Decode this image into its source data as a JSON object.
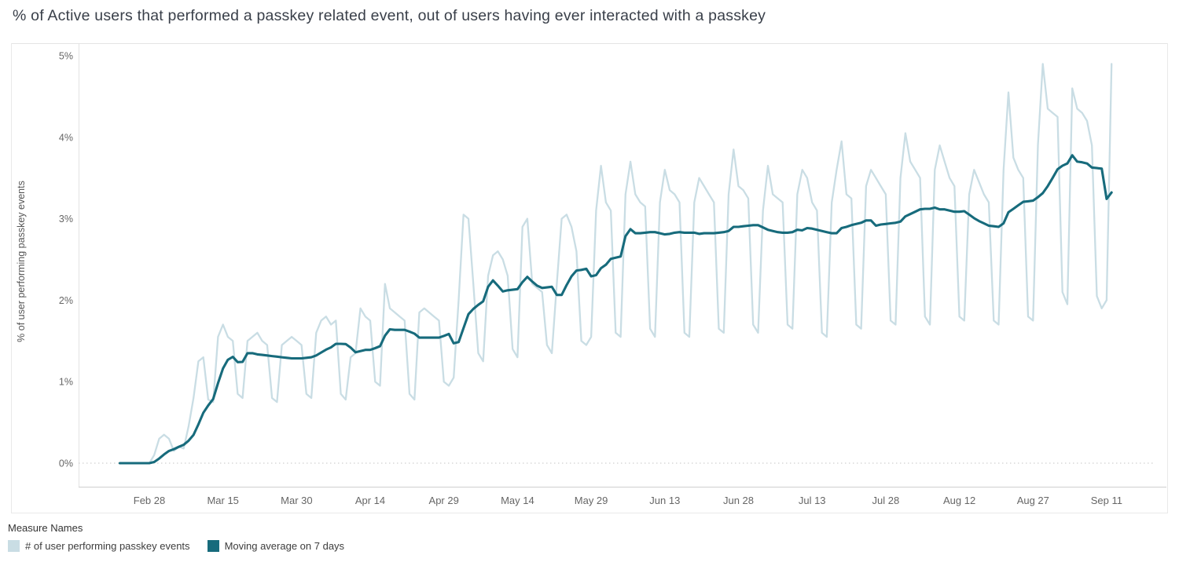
{
  "title": "% of Active users that performed a passkey related event, out of users having ever interacted with a passkey",
  "legend": {
    "title": "Measure Names",
    "items": [
      {
        "label": "# of user performing passkey events",
        "color": "#c9dde4"
      },
      {
        "label": "Moving average on 7 days",
        "color": "#176b7c"
      }
    ]
  },
  "chart_data": {
    "type": "line",
    "title": "% of Active users that performed a passkey related event, out of users having ever interacted with a passkey",
    "xlabel": "",
    "ylabel": "% of user performing passkey events",
    "ylim": [
      0,
      5
    ],
    "y_ticks": [
      "0%",
      "1%",
      "2%",
      "3%",
      "4%",
      "5%"
    ],
    "y_tick_values": [
      0,
      1,
      2,
      3,
      4,
      5
    ],
    "x_tick_labels": [
      "Feb 28",
      "Mar 15",
      "Mar 30",
      "Apr 14",
      "Apr 29",
      "May 14",
      "May 29",
      "Jun 13",
      "Jun 28",
      "Jul 13",
      "Jul 28",
      "Aug 12",
      "Aug 27",
      "Sep 11"
    ],
    "x_tick_day_index": [
      6,
      21,
      36,
      51,
      66,
      81,
      96,
      111,
      126,
      141,
      156,
      171,
      186,
      201
    ],
    "x_step_days": 1,
    "grid": "dotted-zero-line-only",
    "legend_position": "bottom-left",
    "series": [
      {
        "name": "# of user performing passkey events",
        "color": "#c9dde4",
        "unit": "percent",
        "values": [
          0,
          0,
          0,
          0,
          0,
          0,
          0,
          0.1,
          0.3,
          0.35,
          0.3,
          0.15,
          0.2,
          0.18,
          0.45,
          0.8,
          1.25,
          1.3,
          0.78,
          0.75,
          1.55,
          1.7,
          1.55,
          1.5,
          0.85,
          0.8,
          1.5,
          1.55,
          1.6,
          1.5,
          1.45,
          0.8,
          0.75,
          1.45,
          1.5,
          1.55,
          1.5,
          1.45,
          0.85,
          0.8,
          1.6,
          1.75,
          1.8,
          1.7,
          1.75,
          0.85,
          0.78,
          1.3,
          1.35,
          1.9,
          1.8,
          1.75,
          1.0,
          0.95,
          2.2,
          1.9,
          1.85,
          1.8,
          1.75,
          0.85,
          0.78,
          1.85,
          1.9,
          1.85,
          1.8,
          1.75,
          1.0,
          0.95,
          1.05,
          2.0,
          3.05,
          3.0,
          2.2,
          1.35,
          1.25,
          2.3,
          2.55,
          2.6,
          2.5,
          2.3,
          1.4,
          1.3,
          2.9,
          3.0,
          2.2,
          2.15,
          2.1,
          1.45,
          1.35,
          2.2,
          3.0,
          3.05,
          2.9,
          2.6,
          1.5,
          1.45,
          1.55,
          3.1,
          3.65,
          3.2,
          3.1,
          1.6,
          1.55,
          3.3,
          3.7,
          3.3,
          3.2,
          3.15,
          1.65,
          1.55,
          3.2,
          3.6,
          3.35,
          3.3,
          3.2,
          1.6,
          1.55,
          3.2,
          3.5,
          3.4,
          3.3,
          3.2,
          1.65,
          1.6,
          3.3,
          3.85,
          3.4,
          3.35,
          3.25,
          1.7,
          1.6,
          3.1,
          3.65,
          3.3,
          3.25,
          3.2,
          1.7,
          1.65,
          3.3,
          3.6,
          3.5,
          3.2,
          3.1,
          1.6,
          1.55,
          3.2,
          3.6,
          3.95,
          3.3,
          3.25,
          1.7,
          1.65,
          3.4,
          3.6,
          3.5,
          3.4,
          3.3,
          1.75,
          1.7,
          3.5,
          4.05,
          3.7,
          3.6,
          3.5,
          1.8,
          1.7,
          3.6,
          3.9,
          3.7,
          3.5,
          3.4,
          1.8,
          1.75,
          3.3,
          3.6,
          3.45,
          3.3,
          3.2,
          1.75,
          1.7,
          3.6,
          4.55,
          3.75,
          3.6,
          3.5,
          1.8,
          1.75,
          3.9,
          4.9,
          4.35,
          4.3,
          4.25,
          2.1,
          1.95,
          4.6,
          4.35,
          4.3,
          4.2,
          3.9,
          2.05,
          1.9,
          2.0,
          4.9
        ]
      },
      {
        "name": "Moving average on 7 days",
        "color": "#176b7c",
        "unit": "percent",
        "derived": "7-day trailing moving average of first series"
      }
    ]
  }
}
